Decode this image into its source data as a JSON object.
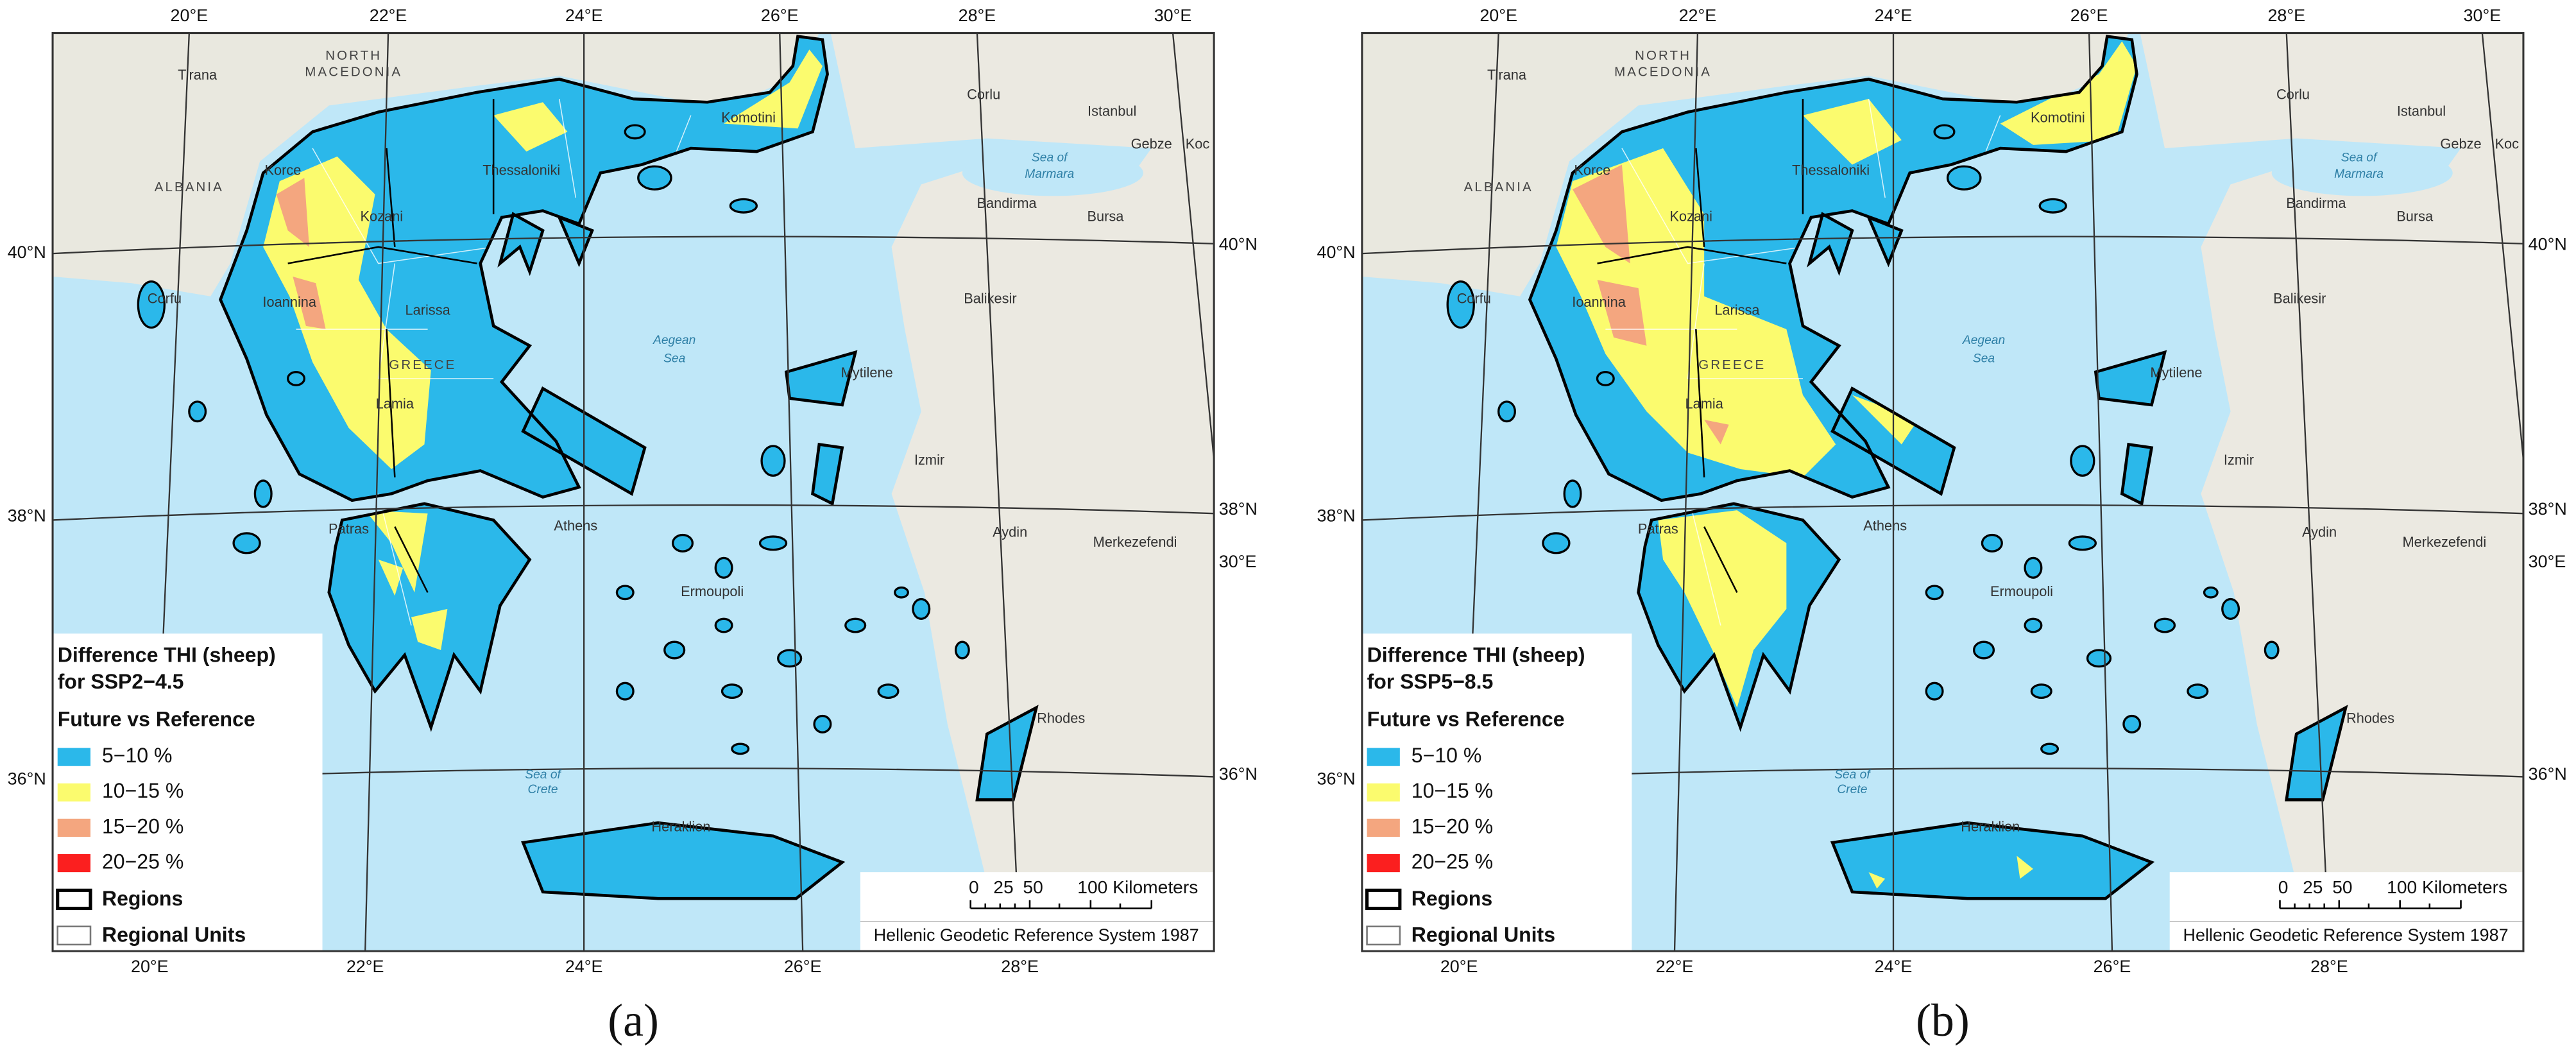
{
  "map": {
    "top_labels": [
      "20°E",
      "22°E",
      "24°E",
      "26°E",
      "28°E",
      "30°E"
    ],
    "bottom_labels": [
      "20°E",
      "22°E",
      "24°E",
      "26°E",
      "28°E"
    ],
    "left_labels": [
      "40°N",
      "38°N",
      "36°N"
    ],
    "right_labels": [
      "40°N",
      "38°N",
      "36°N",
      "30°E"
    ],
    "places": [
      "Tirana",
      "NORTH",
      "MACEDONIA",
      "ALBANIA",
      "Korce",
      "Kozani",
      "Thessaloniki",
      "Komotini",
      "Corlu",
      "Istanbul",
      "Gebze",
      "Koc",
      "Sea of",
      "Marmara",
      "Bandirma",
      "Bursa",
      "Ioannina",
      "Corfu",
      "Larissa",
      "GREECE",
      "Lamia",
      "Balikesir",
      "Aegean",
      "Sea",
      "Mytilene",
      "Izmir",
      "Patras",
      "Athens",
      "Aydin",
      "Merkezefendi",
      "Ermoupoli",
      "Rhodes",
      "Sea of",
      "Crete",
      "Heraklion"
    ],
    "scale": {
      "ticks": [
        "0",
        "25",
        "50"
      ],
      "unit": "100 Kilometers"
    },
    "credit": "Hellenic Geodetic Reference System 1987"
  },
  "panels": [
    {
      "label": "(a)",
      "legend": {
        "title": [
          "Difference THI (sheep)",
          "for SSP2−4.5"
        ],
        "subtitle": "Future vs Reference",
        "items": [
          {
            "label": "5−10 %",
            "color": "#2bb8ea"
          },
          {
            "label": "10−15 %",
            "color": "#fbfb6e"
          },
          {
            "label": "15−20 %",
            "color": "#f4a67f"
          },
          {
            "label": "20−25 %",
            "color": "#fb1f1f"
          }
        ],
        "regions": "Regions",
        "regional_units": "Regional Units"
      }
    },
    {
      "label": "(b)",
      "legend": {
        "title": [
          "Difference THI (sheep)",
          "for SSP5−8.5"
        ],
        "subtitle": "Future vs Reference",
        "items": [
          {
            "label": "5−10 %",
            "color": "#2bb8ea"
          },
          {
            "label": "10−15 %",
            "color": "#fbfb6e"
          },
          {
            "label": "15−20 %",
            "color": "#f4a67f"
          },
          {
            "label": "20−25 %",
            "color": "#fb1f1f"
          }
        ],
        "regions": "Regions",
        "regional_units": "Regional Units"
      }
    }
  ]
}
